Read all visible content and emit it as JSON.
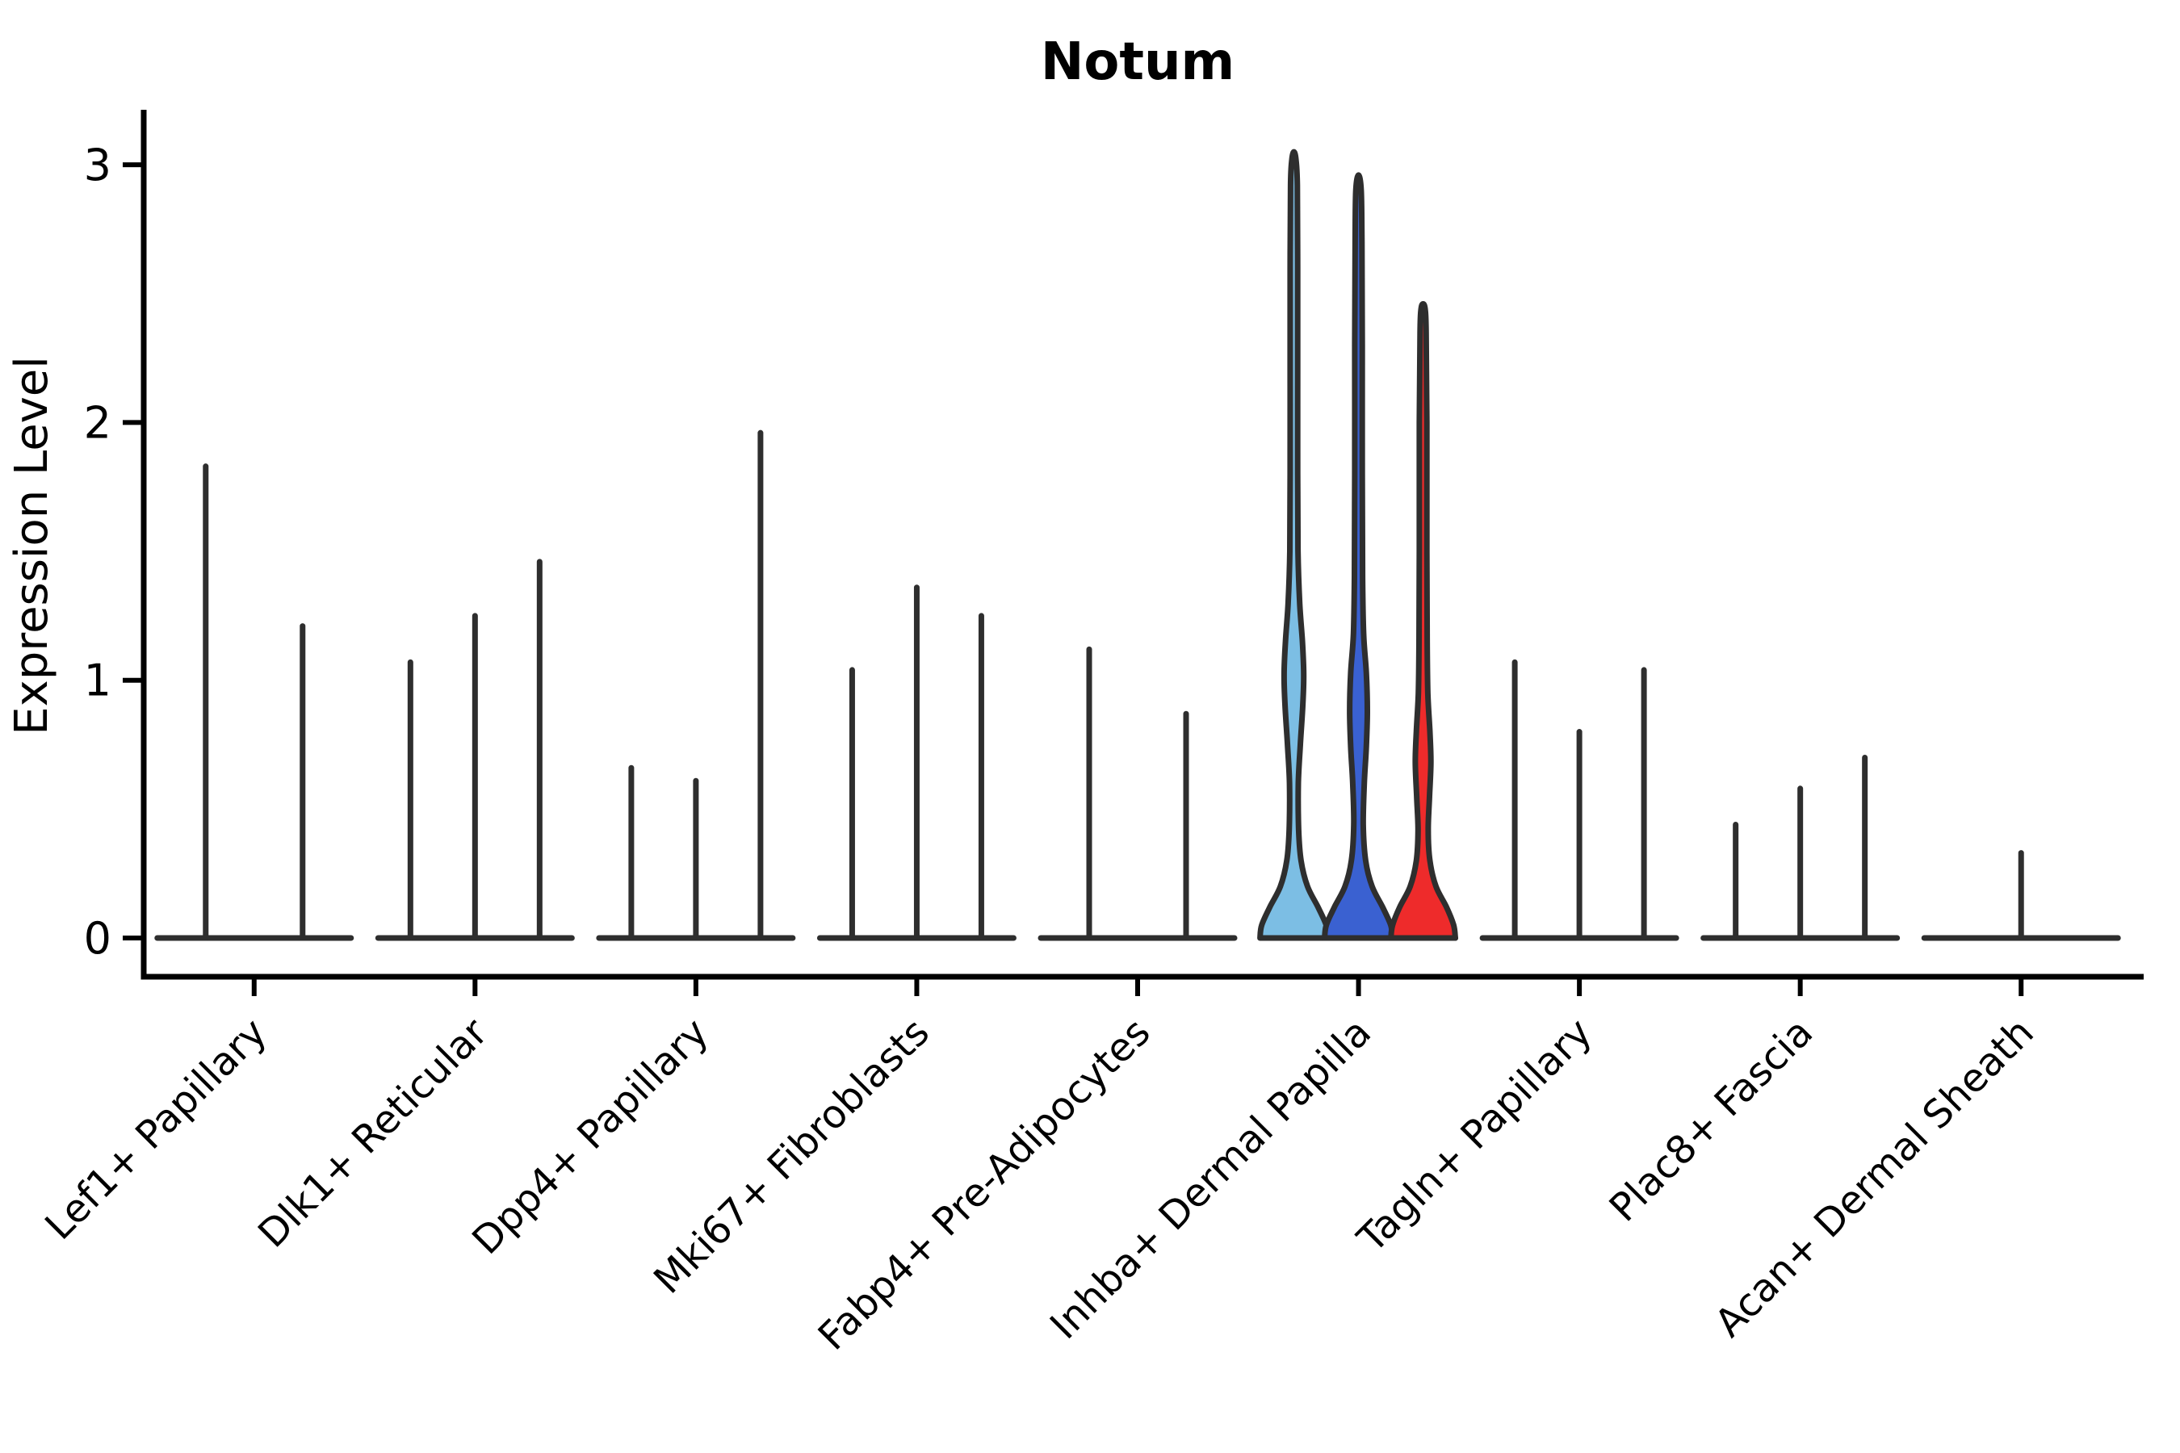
{
  "chart_data": {
    "type": "violin",
    "title": "Notum",
    "xlabel": "",
    "ylabel": "Expression Level",
    "yticks": [
      "0",
      "1",
      "2",
      "3"
    ],
    "ylim": [
      -0.15,
      3.2
    ],
    "grid": false,
    "legend": "none",
    "colors": {
      "spike_outline": "#2e2e2e",
      "axis": "#000000",
      "highlight_fills": [
        "#7cbee4",
        "#3a61d1",
        "#ee2b2b"
      ]
    },
    "categories": [
      {
        "label": "Lef1+ Papillary",
        "violins": [
          {
            "type": "spike",
            "max": 1.83
          },
          {
            "type": "spike",
            "max": 1.21
          }
        ]
      },
      {
        "label": "Dlk1+ Reticular",
        "violins": [
          {
            "type": "spike",
            "max": 1.07
          },
          {
            "type": "spike",
            "max": 1.25
          },
          {
            "type": "spike",
            "max": 1.46
          }
        ]
      },
      {
        "label": "Dpp4+ Papillary",
        "violins": [
          {
            "type": "spike",
            "max": 0.66
          },
          {
            "type": "spike",
            "max": 0.61
          },
          {
            "type": "spike",
            "max": 1.96
          }
        ]
      },
      {
        "label": "Mki67+ Fibroblasts",
        "violins": [
          {
            "type": "spike",
            "max": 1.04
          },
          {
            "type": "spike",
            "max": 1.36
          },
          {
            "type": "spike",
            "max": 1.25
          }
        ]
      },
      {
        "label": "Fabp4+ Pre-Adipocytes",
        "violins": [
          {
            "type": "spike",
            "max": 1.12
          },
          {
            "type": "spike",
            "max": 0.87
          }
        ]
      },
      {
        "label": "Inhba+ Dermal Papilla",
        "violins": [
          {
            "type": "violin",
            "max": 3.05,
            "fill": "#7cbee4",
            "profile": [
              [
                0,
                1.0
              ],
              [
                0.05,
                0.95
              ],
              [
                0.12,
                0.71
              ],
              [
                0.2,
                0.4
              ],
              [
                0.3,
                0.21
              ],
              [
                0.42,
                0.14
              ],
              [
                0.6,
                0.13
              ],
              [
                0.75,
                0.19
              ],
              [
                0.9,
                0.26
              ],
              [
                1.02,
                0.29
              ],
              [
                1.15,
                0.25
              ],
              [
                1.3,
                0.17
              ],
              [
                1.5,
                0.12
              ],
              [
                1.8,
                0.11
              ],
              [
                2.2,
                0.11
              ],
              [
                2.6,
                0.11
              ],
              [
                2.92,
                0.1
              ],
              [
                3.02,
                0.06
              ],
              [
                3.05,
                0
              ]
            ]
          },
          {
            "type": "violin",
            "max": 2.96,
            "fill": "#3a61d1",
            "profile": [
              [
                0,
                1.0
              ],
              [
                0.05,
                0.95
              ],
              [
                0.12,
                0.71
              ],
              [
                0.2,
                0.4
              ],
              [
                0.3,
                0.21
              ],
              [
                0.44,
                0.14
              ],
              [
                0.6,
                0.17
              ],
              [
                0.74,
                0.23
              ],
              [
                0.88,
                0.26
              ],
              [
                1.03,
                0.23
              ],
              [
                1.18,
                0.15
              ],
              [
                1.4,
                0.12
              ],
              [
                1.8,
                0.11
              ],
              [
                2.3,
                0.11
              ],
              [
                2.7,
                0.1
              ],
              [
                2.9,
                0.08
              ],
              [
                2.96,
                0
              ]
            ]
          },
          {
            "type": "violin",
            "max": 2.46,
            "fill": "#ee2b2b",
            "profile": [
              [
                0,
                0.95
              ],
              [
                0.05,
                0.9
              ],
              [
                0.12,
                0.69
              ],
              [
                0.2,
                0.38
              ],
              [
                0.3,
                0.2
              ],
              [
                0.42,
                0.15
              ],
              [
                0.55,
                0.19
              ],
              [
                0.68,
                0.23
              ],
              [
                0.8,
                0.2
              ],
              [
                0.95,
                0.14
              ],
              [
                1.15,
                0.12
              ],
              [
                1.5,
                0.11
              ],
              [
                2.0,
                0.11
              ],
              [
                2.35,
                0.09
              ],
              [
                2.44,
                0.06
              ],
              [
                2.46,
                0
              ]
            ]
          }
        ]
      },
      {
        "label": "Tagln+ Papillary",
        "violins": [
          {
            "type": "spike",
            "max": 1.07
          },
          {
            "type": "spike",
            "max": 0.8
          },
          {
            "type": "spike",
            "max": 1.04
          }
        ]
      },
      {
        "label": "Plac8+ Fascia",
        "violins": [
          {
            "type": "spike",
            "max": 0.44
          },
          {
            "type": "spike",
            "max": 0.58
          },
          {
            "type": "spike",
            "max": 0.7
          }
        ]
      },
      {
        "label": "Acan+ Dermal Sheath",
        "violins": [
          {
            "type": "spike",
            "max": 0.33
          }
        ]
      }
    ]
  }
}
